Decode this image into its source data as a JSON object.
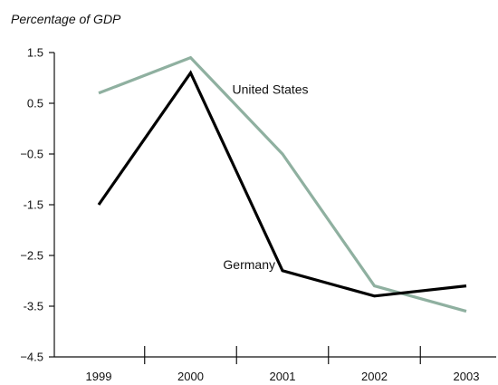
{
  "chart_data": {
    "type": "line",
    "unit_label": "Percentage of GDP",
    "x": [
      "1999",
      "2000",
      "2001",
      "2002",
      "2003"
    ],
    "ylim": [
      -4.5,
      1.5
    ],
    "yticks": [
      {
        "value": 1.5,
        "label": "1.5"
      },
      {
        "value": 0.5,
        "label": "0.5"
      },
      {
        "value": -0.5,
        "label": "−0.5"
      },
      {
        "value": -1.5,
        "label": "-1.5"
      },
      {
        "value": -2.5,
        "label": "−2.5"
      },
      {
        "value": -3.5,
        "label": "-3.5"
      },
      {
        "value": -4.5,
        "label": "−4.5"
      }
    ],
    "grid": false,
    "legend": "inline labels",
    "series": [
      {
        "name": "United States",
        "color": "#8fb0a0",
        "values": [
          0.7,
          1.4,
          -0.5,
          -3.1,
          -3.6
        ]
      },
      {
        "name": "Germany",
        "color": "#000000",
        "values": [
          -1.5,
          1.1,
          -2.8,
          -3.3,
          -3.1
        ]
      }
    ]
  }
}
